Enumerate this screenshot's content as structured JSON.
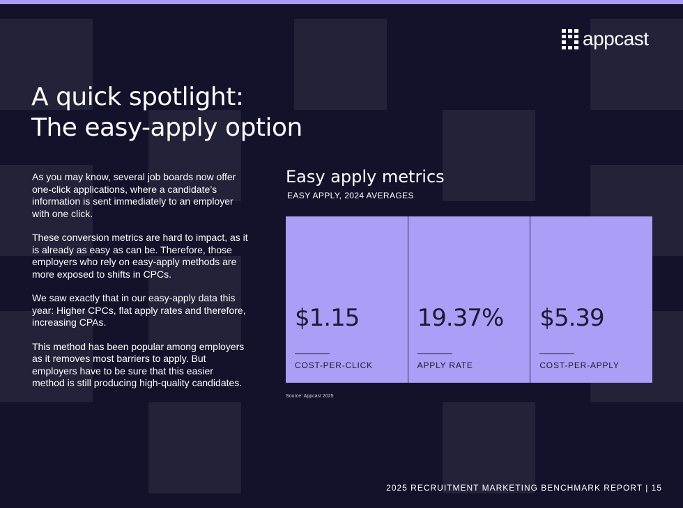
{
  "header": {
    "logo": "appcast"
  },
  "title": {
    "line1": "A quick spotlight:",
    "line2": "The easy-apply option"
  },
  "body": {
    "paragraphs": [
      "As you may know, several job boards now offer one-click applications, where a candidate’s information is sent immediately to an employer with one click.",
      "These conversion metrics are hard to impact, as it is already as easy as can be. Therefore, those employers who rely on easy-apply methods are more exposed to shifts in CPCs.",
      "We saw exactly that in our easy-apply data this year: Higher CPCs, flat apply rates and therefore, increasing CPAs.",
      "This method has been popular among employers as it removes most barriers to apply. But employers have to be sure that this easier method is still producing high-quality candidates."
    ]
  },
  "metrics": {
    "title": "Easy apply metrics",
    "subtitle": "EASY APPLY, 2024 AVERAGES",
    "cards": [
      {
        "value": "$1.15",
        "label": "COST-PER-CLICK"
      },
      {
        "value": "19.37%",
        "label": "APPLY RATE"
      },
      {
        "value": "$5.39",
        "label": "COST-PER-APPLY"
      }
    ],
    "source": "Source: Appcast 2025"
  },
  "footer": {
    "text": "2025 RECRUITMENT MARKETING BENCHMARK REPORT | 15"
  }
}
